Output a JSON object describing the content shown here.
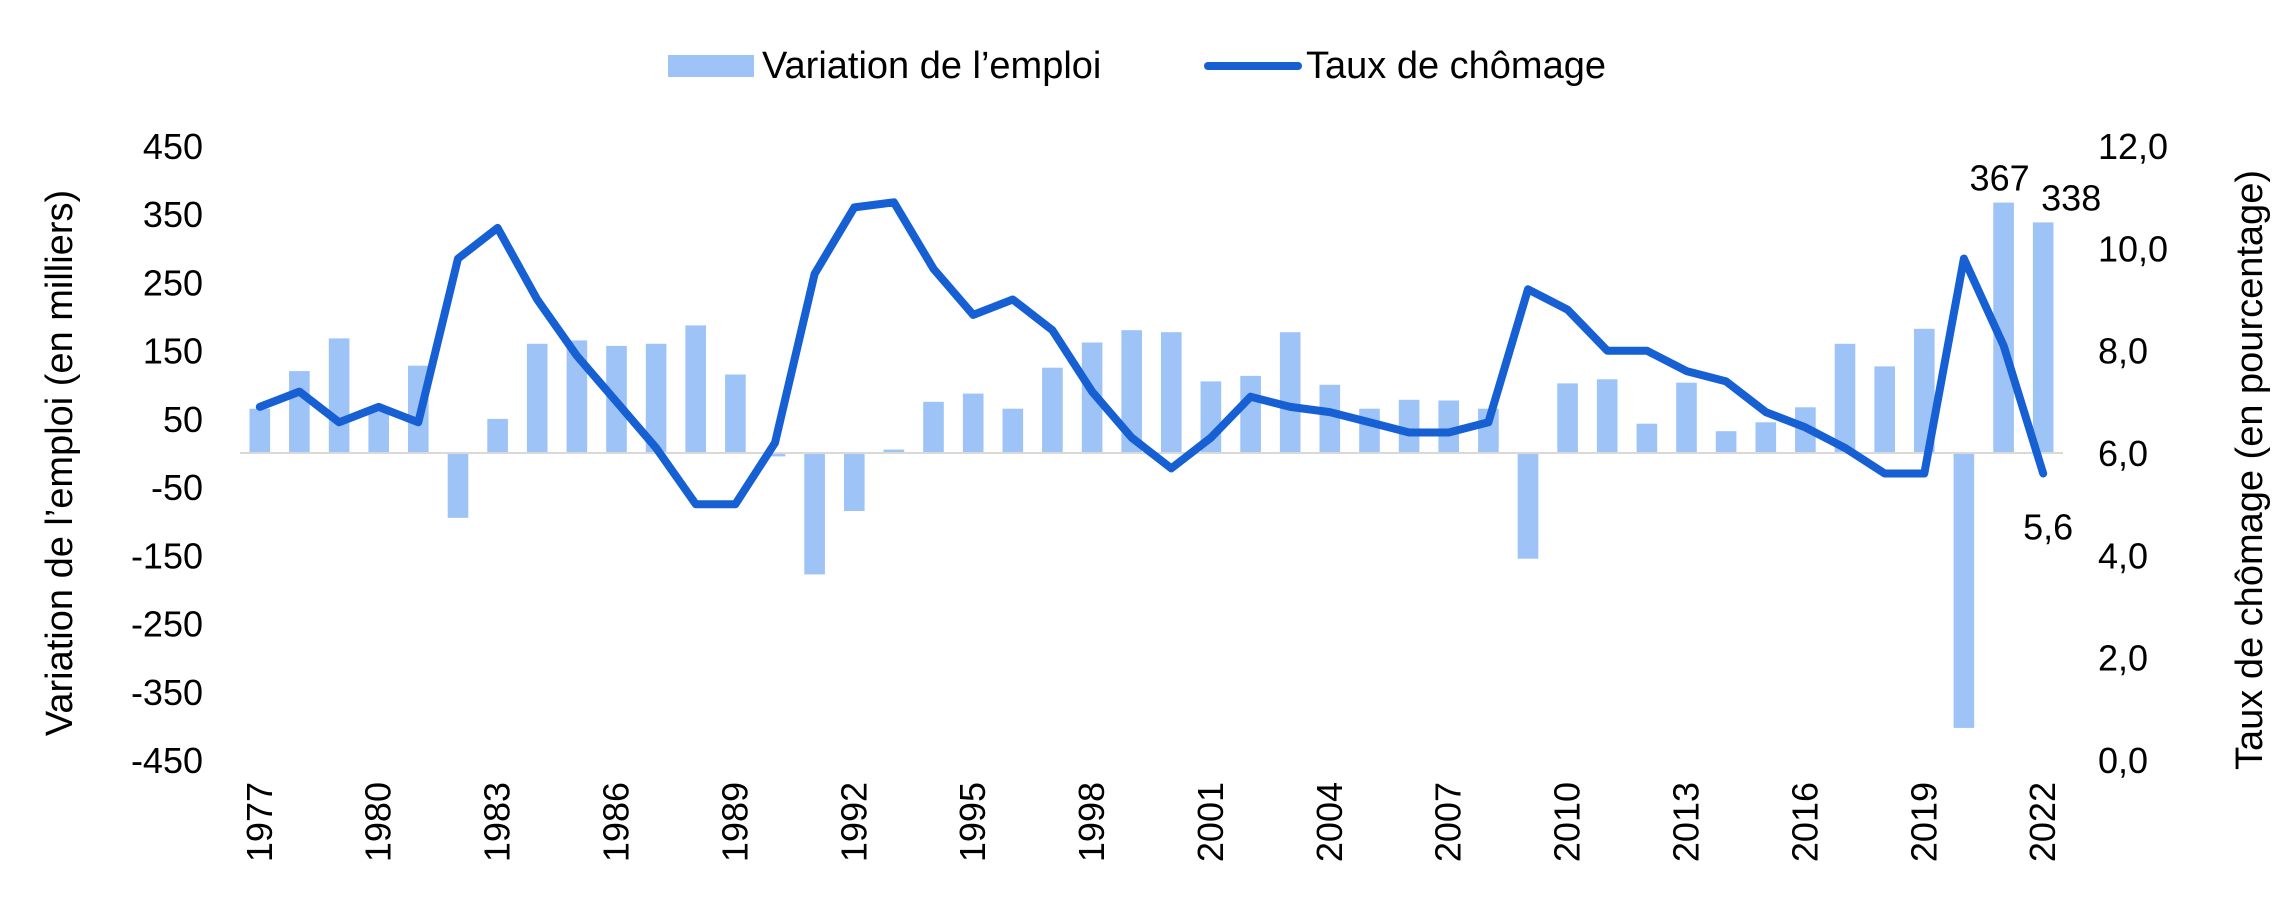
{
  "chart_data": {
    "type": "bar",
    "categories": [
      "1977",
      "1978",
      "1979",
      "1980",
      "1981",
      "1982",
      "1983",
      "1984",
      "1985",
      "1986",
      "1987",
      "1988",
      "1989",
      "1990",
      "1991",
      "1992",
      "1993",
      "1994",
      "1995",
      "1996",
      "1997",
      "1998",
      "1999",
      "2000",
      "2001",
      "2002",
      "2003",
      "2004",
      "2005",
      "2006",
      "2007",
      "2008",
      "2009",
      "2010",
      "2011",
      "2012",
      "2013",
      "2014",
      "2015",
      "2016",
      "2017",
      "2018",
      "2019",
      "2020",
      "2021",
      "2022"
    ],
    "x_tick_labels": [
      "1977",
      "1980",
      "1983",
      "1986",
      "1989",
      "1992",
      "1995",
      "1998",
      "2001",
      "2004",
      "2007",
      "2010",
      "2013",
      "2016",
      "2019",
      "2022"
    ],
    "series": [
      {
        "name": "Variation de l’emploi",
        "type": "bar",
        "axis": "left",
        "color": "#9dc3f7",
        "values": [
          65,
          120,
          168,
          65,
          128,
          -95,
          50,
          160,
          165,
          157,
          160,
          187,
          115,
          -5,
          -178,
          -85,
          5,
          75,
          87,
          65,
          125,
          162,
          180,
          177,
          105,
          113,
          177,
          100,
          65,
          78,
          77,
          65,
          -155,
          102,
          108,
          43,
          103,
          32,
          45,
          67,
          160,
          127,
          182,
          -403,
          367,
          338
        ]
      },
      {
        "name": "Taux de chômage",
        "type": "line",
        "axis": "right",
        "color": "#1660d4",
        "values": [
          6.9,
          7.2,
          6.6,
          6.9,
          6.6,
          9.8,
          10.4,
          9.0,
          7.9,
          7.0,
          6.1,
          5.0,
          5.0,
          6.2,
          9.5,
          10.8,
          10.9,
          9.6,
          8.7,
          9.0,
          8.4,
          7.2,
          6.3,
          5.7,
          6.3,
          7.1,
          6.9,
          6.8,
          6.6,
          6.4,
          6.4,
          6.6,
          9.2,
          8.8,
          8.0,
          8.0,
          7.6,
          7.4,
          6.8,
          6.5,
          6.1,
          5.6,
          5.6,
          9.8,
          8.1,
          5.6
        ]
      }
    ],
    "y_left": {
      "label": "Variation de l’emploi (en milliers)",
      "min": -450,
      "max": 450,
      "ticks": [
        450,
        350,
        250,
        150,
        50,
        -50,
        -150,
        -250,
        -350,
        -450
      ]
    },
    "y_right": {
      "label": "Taux de chômage (en pourcentage)",
      "min": 0,
      "max": 12,
      "ticks": [
        "12,0",
        "10,0",
        "8,0",
        "6,0",
        "4,0",
        "2,0",
        "0,0"
      ]
    },
    "annotations": [
      {
        "text": "367",
        "year": "2021",
        "series": "Variation de l’emploi"
      },
      {
        "text": "338",
        "year": "2022",
        "series": "Variation de l’emploi"
      },
      {
        "text": "5,6",
        "year": "2022",
        "series": "Taux de chômage"
      }
    ],
    "legend": {
      "position": "top-center"
    },
    "grid": false
  }
}
